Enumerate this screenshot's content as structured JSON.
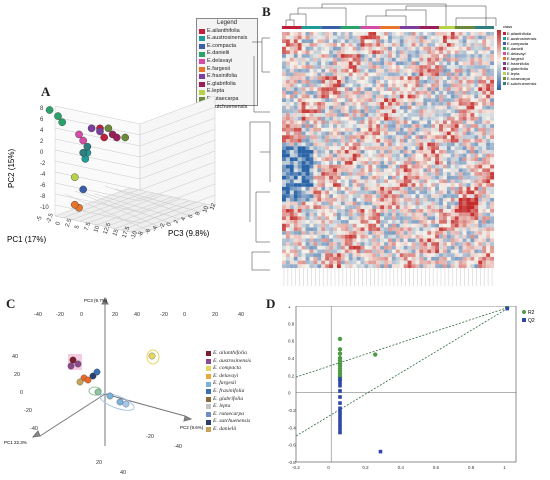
{
  "panels": {
    "A": {
      "label": "A",
      "legend_title": "Legend",
      "pc1": "PC1 (17%)",
      "pc2": "PC2 (15%)",
      "pc3": "PC3 (9.8%)",
      "yticks": [
        "8",
        "6",
        "4",
        "2",
        "0",
        "-2",
        "-4",
        "-6",
        "-8",
        "-10"
      ],
      "xticks": [
        "-5",
        "-2.5",
        "0",
        "2.5",
        "5",
        "7.5",
        "10",
        "12.5",
        "15",
        "17.5"
      ],
      "zticks": [
        "-10",
        "-8",
        "-6",
        "-4",
        "-2",
        "0",
        "2",
        "4",
        "6",
        "8",
        "10",
        "12"
      ]
    },
    "B": {
      "label": "B",
      "legend_title": "class"
    },
    "C": {
      "label": "C",
      "axis_y": "PC3 (9.7%)",
      "axis_left": "PC1 22.3%",
      "axis_right": "PC2 (9.6%)",
      "ticks_top": [
        "-40",
        "-20",
        "0",
        "20",
        "40",
        "-20",
        "0",
        "20",
        "40"
      ],
      "ticks_left": [
        "40",
        "20",
        "0",
        "-20",
        "-40"
      ],
      "ticks_bottom": [
        "20",
        "40",
        "-20",
        "-40"
      ]
    },
    "D": {
      "label": "D",
      "xticks": [
        "-0.2",
        "0",
        "0.2",
        "0.4",
        "0.6",
        "0.8",
        "1"
      ],
      "yticks": [
        "1",
        "0.8",
        "0.6",
        "0.4",
        "0.2",
        "0",
        "-0.2",
        "-0.4",
        "-0.6",
        "-0.8"
      ]
    }
  },
  "legend_species": [
    {
      "name": "E.ailanthifolia",
      "color": "#c0203a"
    },
    {
      "name": "E.austrosinensis",
      "color": "#1f9c98"
    },
    {
      "name": "E.compacta",
      "color": "#3a5ea8"
    },
    {
      "name": "E.danielii",
      "color": "#2aa36b"
    },
    {
      "name": "E.delavayi",
      "color": "#d44ca8"
    },
    {
      "name": "E.fargesii",
      "color": "#e8742a"
    },
    {
      "name": "E.fraxinifolia",
      "color": "#7b3fa0"
    },
    {
      "name": "E.glabrifolia",
      "color": "#9a1e5a"
    },
    {
      "name": "E.lepta",
      "color": "#b6d34a"
    },
    {
      "name": "E.rutaecarpa",
      "color": "#6a8a3a"
    },
    {
      "name": "E.sutchuenensis",
      "color": "#2f7f7f"
    }
  ],
  "legend_c": [
    {
      "name": "E. ailanthifolia",
      "color": "#7c1f2c"
    },
    {
      "name": "E. austrosinensis",
      "color": "#8c4a8c"
    },
    {
      "name": "E. compacta",
      "color": "#e4d65c"
    },
    {
      "name": "E. delavayi",
      "color": "#eaa83e"
    },
    {
      "name": "E. fargesii",
      "color": "#79b3d8"
    },
    {
      "name": "E. fraxinifolia",
      "color": "#3b6fb0"
    },
    {
      "name": "E. glabrifolia",
      "color": "#8c6b3a"
    },
    {
      "name": "E. lepta",
      "color": "#c4c4c4"
    },
    {
      "name": "E. rutaecarpa",
      "color": "#6f8fc4"
    },
    {
      "name": "E. sutchuenensis",
      "color": "#2a3f6a"
    },
    {
      "name": "E. danielii",
      "color": "#c8a25a"
    }
  ],
  "chart_data": [
    {
      "type": "scatter",
      "title": "",
      "xlabel": "PC1 (17%)",
      "ylabel": "PC2 (15%)",
      "zlabel": "PC3 (9.8%)",
      "ylim": [
        -10,
        8
      ],
      "series": [
        {
          "name": "E.ailanthifolia",
          "points": [
            [
              0,
              5
            ],
            [
              1,
              3.5
            ]
          ]
        },
        {
          "name": "E.austrosinensis",
          "points": [
            [
              -3,
              1
            ],
            [
              -3.5,
              0
            ]
          ]
        },
        {
          "name": "E.compacta",
          "points": [
            [
              -4,
              -5
            ]
          ]
        },
        {
          "name": "E.danielii",
          "points": [
            [
              -12,
              8
            ],
            [
              -10,
              7
            ],
            [
              -9,
              6
            ]
          ]
        },
        {
          "name": "E.delavayi",
          "points": [
            [
              -5,
              4
            ],
            [
              -4,
              3
            ]
          ]
        },
        {
          "name": "E.fargesii",
          "points": [
            [
              -5,
              -8
            ],
            [
              -6,
              -7.5
            ]
          ]
        },
        {
          "name": "E.fraxinifolia",
          "points": [
            [
              -2,
              5
            ],
            [
              0,
              4.5
            ]
          ]
        },
        {
          "name": "E.glabrifolia",
          "points": [
            [
              3,
              4
            ],
            [
              4,
              3.5
            ]
          ]
        },
        {
          "name": "E.lepta",
          "points": [
            [
              -6,
              -3
            ]
          ]
        },
        {
          "name": "E.rutaecarpa",
          "points": [
            [
              2,
              5
            ],
            [
              6,
              3.5
            ]
          ]
        },
        {
          "name": "E.sutchuenensis",
          "points": [
            [
              -3,
              2
            ],
            [
              -4,
              1
            ]
          ]
        }
      ]
    },
    {
      "type": "heatmap",
      "title": "",
      "legend": "class"
    },
    {
      "type": "scatter",
      "title": "",
      "xlabel": "PC1 22.3%",
      "ylabel": "PC3 (9.7%)",
      "zlabel": "PC2 (9.6%)"
    },
    {
      "type": "scatter",
      "title": "",
      "xlim": [
        -0.2,
        1.05
      ],
      "ylim": [
        -0.8,
        1
      ],
      "series": [
        {
          "name": "R2",
          "color": "#4f9a44",
          "points": [
            [
              0.05,
              0.62
            ],
            [
              0.05,
              0.5
            ],
            [
              0.05,
              0.45
            ],
            [
              0.05,
              0.4
            ],
            [
              0.05,
              0.37
            ],
            [
              0.05,
              0.34
            ],
            [
              0.05,
              0.31
            ],
            [
              0.05,
              0.28
            ],
            [
              0.05,
              0.25
            ],
            [
              0.05,
              0.22
            ],
            [
              0.05,
              0.19
            ],
            [
              0.05,
              0.15
            ],
            [
              0.25,
              0.44
            ],
            [
              1,
              0.98
            ]
          ]
        },
        {
          "name": "Q2",
          "color": "#2e47a8",
          "points": [
            [
              0.05,
              0.16
            ],
            [
              0.05,
              0.12
            ],
            [
              0.05,
              0.08
            ],
            [
              0.05,
              0.02
            ],
            [
              0.05,
              -0.05
            ],
            [
              0.05,
              -0.12
            ],
            [
              0.05,
              -0.18
            ],
            [
              0.05,
              -0.22
            ],
            [
              0.05,
              -0.26
            ],
            [
              0.05,
              -0.3
            ],
            [
              0.05,
              -0.34
            ],
            [
              0.05,
              -0.38
            ],
            [
              0.05,
              -0.42
            ],
            [
              0.05,
              -0.46
            ],
            [
              0.28,
              -0.68
            ],
            [
              1,
              0.97
            ]
          ]
        }
      ],
      "lines": [
        {
          "name": "R2",
          "from": [
            -0.2,
            0.18
          ],
          "to": [
            1,
            0.98
          ]
        },
        {
          "name": "Q2",
          "from": [
            -0.2,
            -0.5
          ],
          "to": [
            1,
            0.97
          ]
        }
      ]
    }
  ]
}
